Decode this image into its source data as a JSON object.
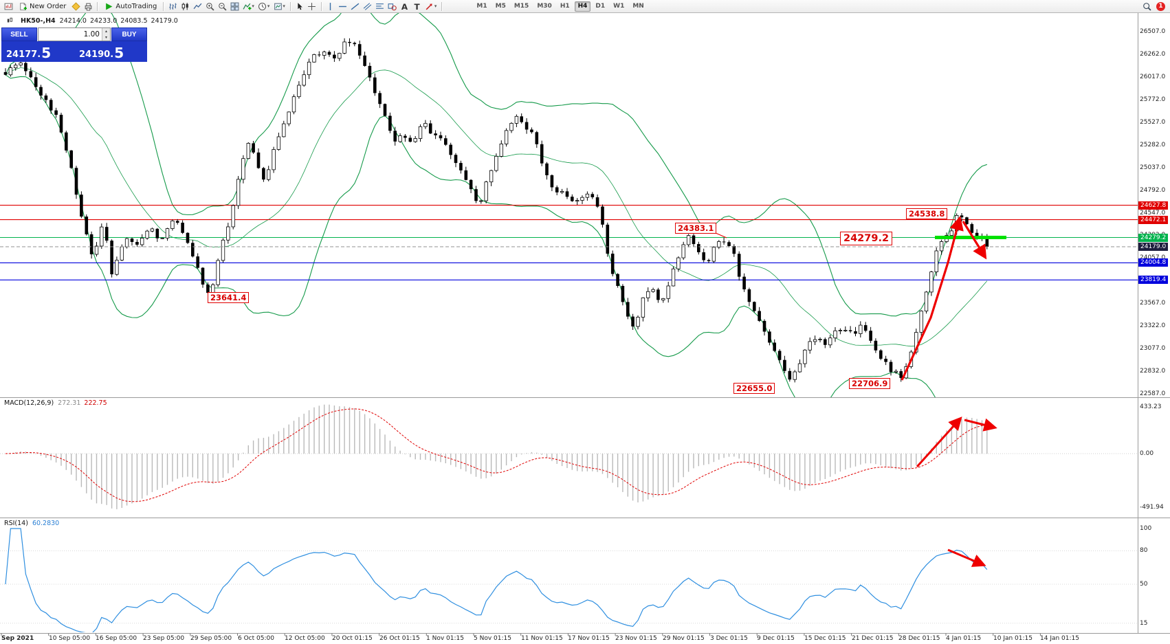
{
  "toolbar": {
    "new_order": "New Order",
    "autotrading": "AutoTrading",
    "timeframes": [
      "M1",
      "M5",
      "M15",
      "M30",
      "H1",
      "H4",
      "D1",
      "W1",
      "MN"
    ],
    "active_timeframe": "H4",
    "notification_count": "1",
    "icon_groups": [
      [
        "chart-window"
      ],
      [
        "new-order"
      ],
      [
        "metaeditor",
        "print"
      ],
      [
        "autotrading"
      ],
      [
        "bar-chart",
        "candlestick",
        "line-chart"
      ],
      [
        "zoom-in",
        "zoom-out",
        "tile-windows"
      ],
      [
        "indicators",
        "periods",
        "templates"
      ],
      [
        "cursor",
        "crosshair"
      ],
      [
        "vertical-line",
        "horizontal-line",
        "trendline",
        "channel",
        "fibonacci",
        "shapes",
        "text",
        "label",
        "arrows"
      ]
    ],
    "dropdown_icons": [
      "indicators",
      "periods",
      "templates",
      "arrows"
    ]
  },
  "chart_header": {
    "symbol_period": "HK50-,H4",
    "open": "24214.0",
    "high": "24233.0",
    "low": "24083.5",
    "close": "24179.0"
  },
  "trade_panel": {
    "sell_label": "SELL",
    "buy_label": "BUY",
    "volume": "1.00",
    "sell_price_base": "24177",
    "sell_price_frac": "5",
    "buy_price_base": "24190",
    "buy_price_frac": "5"
  },
  "main_chart": {
    "price_axis_ticks": [
      "26507.0",
      "26262.0",
      "26017.0",
      "25772.0",
      "25527.0",
      "25282.0",
      "25037.0",
      "24792.0",
      "24547.0",
      "24302.0",
      "24057.0",
      "23812.0",
      "23567.0",
      "23322.0",
      "23077.0",
      "22832.0",
      "22587.0"
    ],
    "hlines": [
      {
        "price": 24627.8,
        "label": "24627.8",
        "color": "#e00000"
      },
      {
        "price": 24472.1,
        "label": "24472.1",
        "color": "#e00000"
      },
      {
        "price": 24279.2,
        "label": "24279.2",
        "color": "#00b34d"
      },
      {
        "price": 24004.8,
        "label": "24004.8",
        "color": "#0000dd"
      },
      {
        "price": 23819.4,
        "label": "23819.4",
        "color": "#0000dd"
      }
    ],
    "current_price": {
      "value": 24179.0,
      "label": "24179.0",
      "badge_color": "#1f1f3f"
    },
    "annotations": [
      {
        "text": "24538.8"
      },
      {
        "text": "24383.1"
      },
      {
        "text": "24279.2"
      },
      {
        "text": "23641.4"
      },
      {
        "text": "22655.0"
      },
      {
        "text": "22706.9"
      }
    ]
  },
  "chart_data": {
    "type": "candlestick",
    "symbol": "HK50-",
    "timeframe": "H4",
    "visible_price_range": {
      "min": 22587.0,
      "max": 26507.0
    },
    "candle_count": 195,
    "price_path_anchors": [
      [
        0.0,
        26060
      ],
      [
        0.017,
        26150
      ],
      [
        0.032,
        25900
      ],
      [
        0.051,
        25600
      ],
      [
        0.066,
        25100
      ],
      [
        0.078,
        24450
      ],
      [
        0.089,
        24060
      ],
      [
        0.1,
        24500
      ],
      [
        0.108,
        23880
      ],
      [
        0.116,
        24150
      ],
      [
        0.124,
        24300
      ],
      [
        0.135,
        24200
      ],
      [
        0.146,
        24400
      ],
      [
        0.158,
        24250
      ],
      [
        0.169,
        24480
      ],
      [
        0.181,
        24350
      ],
      [
        0.19,
        24100
      ],
      [
        0.2,
        23820
      ],
      [
        0.209,
        23641
      ],
      [
        0.219,
        24200
      ],
      [
        0.23,
        24500
      ],
      [
        0.239,
        25000
      ],
      [
        0.248,
        25350
      ],
      [
        0.257,
        25050
      ],
      [
        0.264,
        24850
      ],
      [
        0.274,
        25250
      ],
      [
        0.284,
        25500
      ],
      [
        0.293,
        25750
      ],
      [
        0.303,
        26050
      ],
      [
        0.314,
        26250
      ],
      [
        0.325,
        26300
      ],
      [
        0.337,
        26200
      ],
      [
        0.348,
        26420
      ],
      [
        0.358,
        26350
      ],
      [
        0.367,
        26100
      ],
      [
        0.379,
        25800
      ],
      [
        0.386,
        25600
      ],
      [
        0.396,
        25300
      ],
      [
        0.405,
        25400
      ],
      [
        0.415,
        25250
      ],
      [
        0.424,
        25550
      ],
      [
        0.434,
        25400
      ],
      [
        0.444,
        25350
      ],
      [
        0.453,
        25200
      ],
      [
        0.463,
        25000
      ],
      [
        0.473,
        24850
      ],
      [
        0.482,
        24600
      ],
      [
        0.491,
        24900
      ],
      [
        0.501,
        25200
      ],
      [
        0.511,
        25450
      ],
      [
        0.52,
        25600
      ],
      [
        0.529,
        25500
      ],
      [
        0.539,
        25350
      ],
      [
        0.549,
        25000
      ],
      [
        0.558,
        24800
      ],
      [
        0.567,
        24750
      ],
      [
        0.577,
        24650
      ],
      [
        0.587,
        24700
      ],
      [
        0.596,
        24750
      ],
      [
        0.605,
        24600
      ],
      [
        0.613,
        24100
      ],
      [
        0.623,
        23750
      ],
      [
        0.633,
        23450
      ],
      [
        0.64,
        23300
      ],
      [
        0.649,
        23600
      ],
      [
        0.659,
        23750
      ],
      [
        0.668,
        23550
      ],
      [
        0.676,
        23800
      ],
      [
        0.686,
        24100
      ],
      [
        0.695,
        24300
      ],
      [
        0.704,
        24150
      ],
      [
        0.714,
        24000
      ],
      [
        0.724,
        24200
      ],
      [
        0.733,
        24250
      ],
      [
        0.742,
        24100
      ],
      [
        0.752,
        23700
      ],
      [
        0.762,
        23500
      ],
      [
        0.771,
        23300
      ],
      [
        0.781,
        23100
      ],
      [
        0.79,
        22900
      ],
      [
        0.8,
        22700
      ],
      [
        0.808,
        22900
      ],
      [
        0.817,
        23100
      ],
      [
        0.826,
        23200
      ],
      [
        0.836,
        23100
      ],
      [
        0.846,
        23250
      ],
      [
        0.855,
        23300
      ],
      [
        0.864,
        23200
      ],
      [
        0.874,
        23350
      ],
      [
        0.884,
        23100
      ],
      [
        0.893,
        22950
      ],
      [
        0.902,
        22850
      ],
      [
        0.912,
        22760
      ],
      [
        0.922,
        23000
      ],
      [
        0.931,
        23400
      ],
      [
        0.941,
        23800
      ],
      [
        0.948,
        24100
      ],
      [
        0.956,
        24300
      ],
      [
        0.963,
        24350
      ],
      [
        0.971,
        24538
      ],
      [
        0.977,
        24450
      ],
      [
        0.983,
        24350
      ],
      [
        0.989,
        24300
      ],
      [
        0.995,
        24250
      ],
      [
        1.0,
        24179
      ]
    ],
    "overlays": [
      {
        "name": "Bollinger Bands",
        "period": 20,
        "deviation": 2,
        "color": "#159a4a"
      }
    ]
  },
  "macd": {
    "name": "MACD(12,26,9)",
    "value1": "272.31",
    "value2": "222.75",
    "axis_ticks": [
      "433.23",
      "0.00",
      "-491.94"
    ],
    "params": {
      "fast": 12,
      "slow": 26,
      "signal": 9
    }
  },
  "rsi": {
    "name": "RSI(14)",
    "value": "60.2830",
    "period": 14,
    "axis_ticks": [
      "100",
      "80",
      "50",
      "15"
    ]
  },
  "time_axis": [
    "Sep 2021",
    "10 Sep 05:00",
    "16 Sep 05:00",
    "23 Sep 05:00",
    "29 Sep 05:00",
    "6 Oct 05:00",
    "12 Oct 05:00",
    "20 Oct 01:15",
    "26 Oct 01:15",
    "1 Nov 01:15",
    "5 Nov 01:15",
    "11 Nov 01:15",
    "17 Nov 01:15",
    "23 Nov 01:15",
    "29 Nov 01:15",
    "3 Dec 01:15",
    "9 Dec 01:15",
    "15 Dec 01:15",
    "21 Dec 01:15",
    "28 Dec 01:15",
    "4 Jan 01:15",
    "10 Jan 01:15",
    "14 Jan 01:15"
  ],
  "colors": {
    "candle_up_fill": "#ffffff",
    "candle_down_fill": "#000000",
    "candle_stroke": "#000000",
    "band": "#159a4a",
    "macd_histogram": "#b9b9b9",
    "macd_signal": "#e00000",
    "rsi_line": "#2f8fe0",
    "arrow": "#ee0000",
    "highlight_segment": "#00e100",
    "current_line": "#909090"
  }
}
